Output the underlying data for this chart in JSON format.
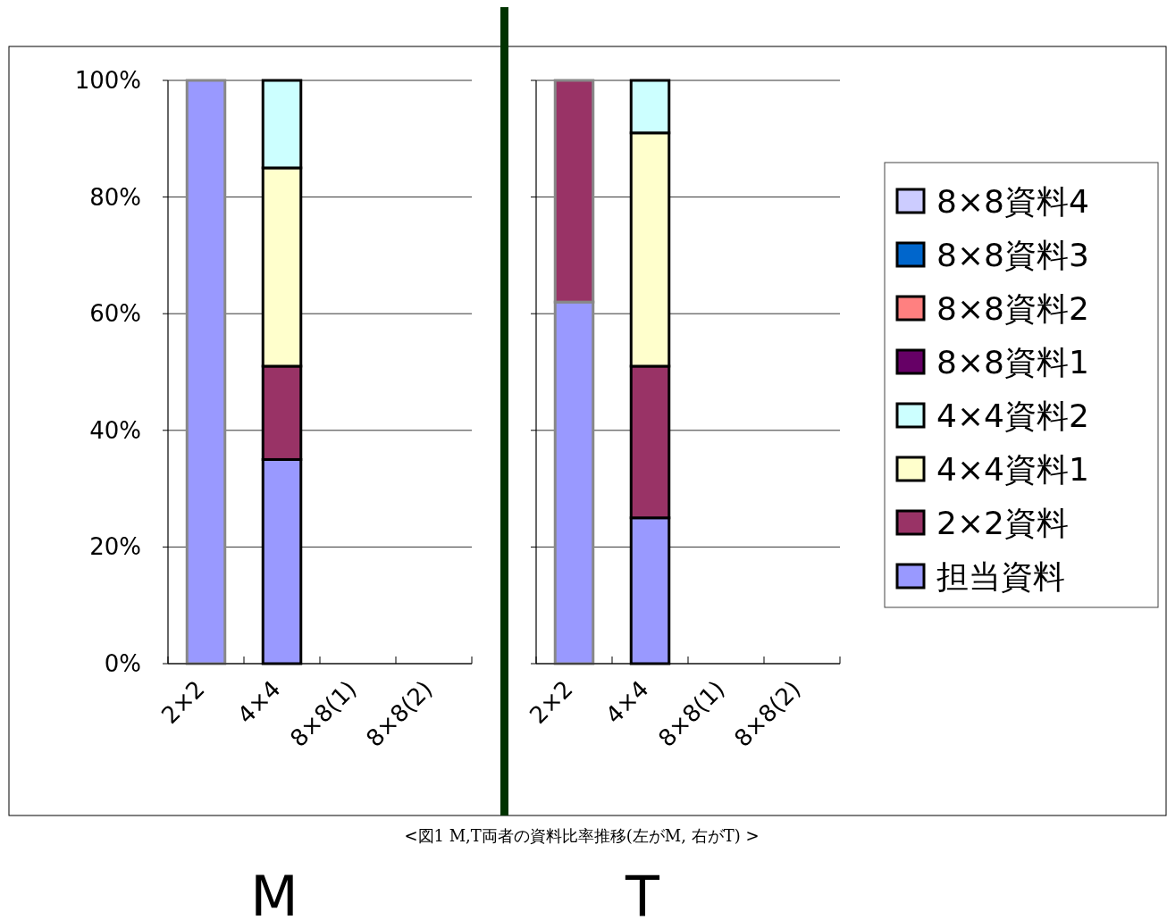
{
  "chart_data": [
    {
      "type": "bar",
      "stacked": true,
      "xlabel": "M",
      "categories": [
        "2×2",
        "4×4",
        "8×8(1)",
        "8×8(2)"
      ],
      "ylim": [
        0,
        100
      ],
      "yticks": [
        {
          "value": 0,
          "label": "0%"
        },
        {
          "value": 20,
          "label": "20%"
        },
        {
          "value": 40,
          "label": "40%"
        },
        {
          "value": 60,
          "label": "60%"
        },
        {
          "value": 80,
          "label": "80%"
        },
        {
          "value": 100,
          "label": "100%"
        }
      ],
      "grid": "y",
      "legend": false,
      "series": [
        {
          "color": "#9999ff",
          "values": [
            100,
            35,
            null,
            null
          ]
        },
        {
          "color": "#993366",
          "values": [
            null,
            16,
            null,
            null
          ]
        },
        {
          "color": "#ffffcc",
          "values": [
            null,
            34,
            null,
            null
          ]
        },
        {
          "color": "#ccffff",
          "values": [
            null,
            15,
            null,
            null
          ]
        }
      ]
    },
    {
      "type": "bar",
      "stacked": true,
      "xlabel": "T",
      "categories": [
        "2×2",
        "4×4",
        "8×8(1)",
        "8×8(2)"
      ],
      "ylim": [
        0,
        100
      ],
      "yticks": [
        {
          "value": 0,
          "label": null
        },
        {
          "value": 20,
          "label": null
        },
        {
          "value": 40,
          "label": null
        },
        {
          "value": 60,
          "label": null
        },
        {
          "value": 80,
          "label": null
        },
        {
          "value": 100,
          "label": null
        }
      ],
      "tick_labels": "x",
      "grid": "y",
      "legend": "right",
      "annotations": [
        "<図1 M,T両者の資料比率推移(左がM, 右がT) >"
      ],
      "series": [
        {
          "name": "担当資料",
          "color": "#9999ff",
          "values": [
            62,
            25,
            null,
            null
          ]
        },
        {
          "name": "2×2資料",
          "color": "#993366",
          "values": [
            38,
            26,
            null,
            null
          ]
        },
        {
          "name": "4×4資料1",
          "color": "#ffffcc",
          "values": [
            null,
            40,
            null,
            null
          ]
        },
        {
          "name": "4×4資料2",
          "color": "#ccffff",
          "values": [
            null,
            9,
            null,
            null
          ]
        },
        {
          "name": "8×8資料1",
          "color": "#660066",
          "values": [
            null,
            null,
            null,
            null
          ]
        },
        {
          "name": "8×8資料2",
          "color": "#ff8080",
          "values": [
            null,
            null,
            null,
            null
          ]
        },
        {
          "name": "8×8資料3",
          "color": "#0066cc",
          "values": [
            null,
            null,
            null,
            null
          ]
        },
        {
          "name": "8×8資料4",
          "color": "#ccccff",
          "values": [
            null,
            null,
            null,
            null
          ]
        }
      ]
    }
  ]
}
